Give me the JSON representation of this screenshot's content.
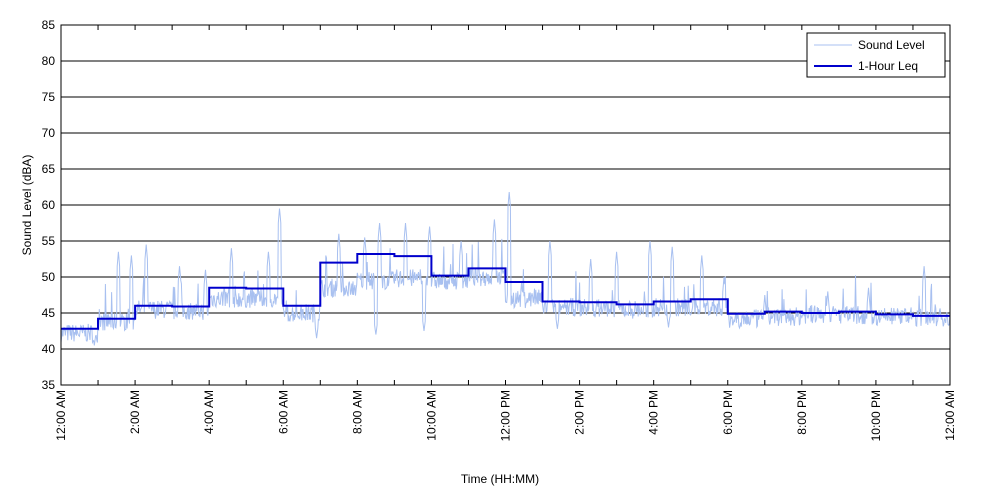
{
  "chart_data": {
    "type": "line",
    "title": "",
    "xlabel": "Time (HH:MM)",
    "ylabel": "Sound Level (dBA)",
    "xlim": [
      0,
      24
    ],
    "ylim": [
      35,
      85
    ],
    "yticks": [
      35,
      40,
      45,
      50,
      55,
      60,
      65,
      70,
      75,
      80,
      85
    ],
    "xticks": [
      {
        "x": 0,
        "label": "12:00 AM"
      },
      {
        "x": 2,
        "label": "2:00 AM"
      },
      {
        "x": 4,
        "label": "4:00 AM"
      },
      {
        "x": 6,
        "label": "6:00 AM"
      },
      {
        "x": 8,
        "label": "8:00 AM"
      },
      {
        "x": 10,
        "label": "10:00 AM"
      },
      {
        "x": 12,
        "label": "12:00 PM"
      },
      {
        "x": 14,
        "label": "2:00 PM"
      },
      {
        "x": 16,
        "label": "4:00 PM"
      },
      {
        "x": 18,
        "label": "6:00 PM"
      },
      {
        "x": 20,
        "label": "8:00 PM"
      },
      {
        "x": 22,
        "label": "10:00 PM"
      },
      {
        "x": 24,
        "label": "12:00 AM"
      }
    ],
    "grid": "horizontal",
    "legend_position": "top-right",
    "series": [
      {
        "name": "Sound Level",
        "color": "#a8c0f0",
        "base_by_hour": [
          42.2,
          43.8,
          45.5,
          45.3,
          47.0,
          47.0,
          45.0,
          48.5,
          49.5,
          49.8,
          49.5,
          50.0,
          47.0,
          45.8,
          45.7,
          45.5,
          45.8,
          45.8,
          44.2,
          44.5,
          44.8,
          44.7,
          44.5,
          44.4
        ],
        "peaks": [
          {
            "x": 1.55,
            "y": 53.5
          },
          {
            "x": 1.9,
            "y": 53.0
          },
          {
            "x": 2.3,
            "y": 54.5
          },
          {
            "x": 3.2,
            "y": 51.5
          },
          {
            "x": 3.9,
            "y": 51.0
          },
          {
            "x": 4.6,
            "y": 54.0
          },
          {
            "x": 5.6,
            "y": 53.5
          },
          {
            "x": 5.9,
            "y": 59.5
          },
          {
            "x": 7.5,
            "y": 56.0
          },
          {
            "x": 8.2,
            "y": 55.5
          },
          {
            "x": 8.6,
            "y": 57.5
          },
          {
            "x": 9.3,
            "y": 57.5
          },
          {
            "x": 9.95,
            "y": 57.0
          },
          {
            "x": 10.8,
            "y": 55.0
          },
          {
            "x": 11.7,
            "y": 58.0
          },
          {
            "x": 12.1,
            "y": 61.8
          },
          {
            "x": 13.2,
            "y": 55.0
          },
          {
            "x": 14.3,
            "y": 52.5
          },
          {
            "x": 15.0,
            "y": 53.5
          },
          {
            "x": 15.9,
            "y": 55.0
          },
          {
            "x": 16.5,
            "y": 54.2
          },
          {
            "x": 17.3,
            "y": 53.0
          },
          {
            "x": 17.9,
            "y": 50.0
          },
          {
            "x": 19.0,
            "y": 47.5
          },
          {
            "x": 20.7,
            "y": 48.0
          },
          {
            "x": 21.8,
            "y": 48.5
          },
          {
            "x": 23.3,
            "y": 51.5
          }
        ],
        "troughs": [
          {
            "x": 0.9,
            "y": 40.5
          },
          {
            "x": 6.9,
            "y": 41.5
          },
          {
            "x": 8.5,
            "y": 42.0
          },
          {
            "x": 9.8,
            "y": 42.5
          },
          {
            "x": 13.4,
            "y": 42.8
          },
          {
            "x": 16.4,
            "y": 43.0
          }
        ]
      },
      {
        "name": "1-Hour Leq",
        "color": "#0000cc",
        "x": [
          0,
          1,
          2,
          3,
          4,
          5,
          6,
          7,
          8,
          9,
          10,
          11,
          12,
          13,
          14,
          15,
          16,
          17,
          18,
          19,
          20,
          21,
          22,
          23
        ],
        "values": [
          42.8,
          44.2,
          46.0,
          45.9,
          48.5,
          48.4,
          46.0,
          52.0,
          53.2,
          52.9,
          50.2,
          51.2,
          49.3,
          46.6,
          46.5,
          46.2,
          46.6,
          46.9,
          44.9,
          45.2,
          45.0,
          45.2,
          44.8,
          44.6
        ]
      }
    ]
  }
}
